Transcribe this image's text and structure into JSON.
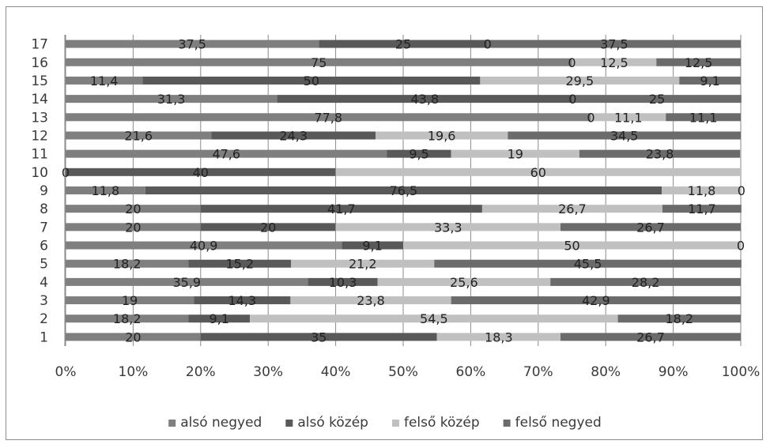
{
  "chart_data": {
    "type": "bar",
    "stacked": true,
    "orientation": "horizontal",
    "normalized_percent": true,
    "categories": [
      "1",
      "2",
      "3",
      "4",
      "5",
      "6",
      "7",
      "8",
      "9",
      "10",
      "11",
      "12",
      "13",
      "14",
      "15",
      "16",
      "17"
    ],
    "series": [
      {
        "name": "alsó negyed",
        "color": "#7f7f7f",
        "values": [
          20,
          18.2,
          19,
          35.9,
          18.2,
          40.9,
          20,
          20,
          11.8,
          0,
          47.6,
          21.6,
          77.8,
          31.3,
          11.4,
          75,
          37.5
        ],
        "labels": [
          "20",
          "18,2",
          "19",
          "35,9",
          "18,2",
          "40,9",
          "20",
          "20",
          "11,8",
          "0",
          "47,6",
          "21,6",
          "77,8",
          "31,3",
          "11,4",
          "75",
          "37,5"
        ]
      },
      {
        "name": "alsó közép",
        "color": "#595959",
        "values": [
          35,
          9.1,
          14.3,
          10.3,
          15.2,
          9.1,
          20,
          41.7,
          76.5,
          40,
          9.5,
          24.3,
          0,
          43.8,
          50,
          0,
          25
        ],
        "labels": [
          "35",
          "9,1",
          "14,3",
          "10,3",
          "15,2",
          "9,1",
          "20",
          "41,7",
          "76,5",
          "40",
          "9,5",
          "24,3",
          "0",
          "43,8",
          "50",
          "0",
          "25"
        ]
      },
      {
        "name": "felső közép",
        "color": "#c0c0c0",
        "values": [
          18.3,
          54.5,
          23.8,
          25.6,
          21.2,
          50,
          33.3,
          26.7,
          11.8,
          60,
          19,
          19.6,
          11.1,
          0,
          29.5,
          12.5,
          0
        ],
        "labels": [
          "18,3",
          "54,5",
          "23,8",
          "25,6",
          "21,2",
          "50",
          "33,3",
          "26,7",
          "11,8",
          "60",
          "19",
          "19,6",
          "11,1",
          "0",
          "29,5",
          "12,5",
          "0"
        ]
      },
      {
        "name": "felső negyed",
        "color": "#6b6b6b",
        "values": [
          26.7,
          18.2,
          42.9,
          28.2,
          45.5,
          0,
          26.7,
          11.7,
          0,
          0,
          23.8,
          34.5,
          11.1,
          25,
          9.1,
          12.5,
          37.5
        ],
        "labels": [
          "26,7",
          "18,2",
          "42,9",
          "28,2",
          "45,5",
          "0",
          "26,7",
          "11,7",
          "0",
          "",
          "23,8",
          "34,5",
          "11,1",
          "25",
          "9,1",
          "12,5",
          "37,5"
        ]
      }
    ],
    "x_ticks": [
      "0%",
      "10%",
      "20%",
      "30%",
      "40%",
      "50%",
      "60%",
      "70%",
      "80%",
      "90%",
      "100%"
    ],
    "xlim": [
      0,
      100
    ],
    "legend_position": "bottom",
    "grid": "vertical"
  }
}
